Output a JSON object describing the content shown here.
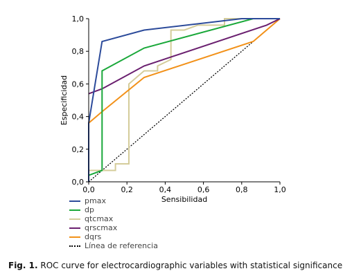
{
  "chart_data": {
    "type": "line",
    "title": "",
    "xlabel": "Sensibilidad",
    "ylabel": "Especificidad",
    "xlim": [
      0,
      1
    ],
    "ylim": [
      0,
      1
    ],
    "x_ticks": [
      "0,0",
      "0,2",
      "0,4",
      "0,6",
      "0,8",
      "1,0"
    ],
    "y_ticks": [
      "0,0",
      "0,2",
      "0,4",
      "0,6",
      "0,8",
      "1,0"
    ],
    "grid": false,
    "legend_position": "bottom-left",
    "series": [
      {
        "name": "pmax",
        "color": "#2b4a9a",
        "points": [
          [
            0,
            0
          ],
          [
            0,
            0.36
          ],
          [
            0.07,
            0.86
          ],
          [
            0.29,
            0.93
          ],
          [
            0.8,
            1
          ],
          [
            1,
            1
          ]
        ]
      },
      {
        "name": "dp",
        "color": "#1aa83a",
        "points": [
          [
            0,
            0.03
          ],
          [
            0,
            0.04
          ],
          [
            0.07,
            0.07
          ],
          [
            0.07,
            0.68
          ],
          [
            0.29,
            0.82
          ],
          [
            0.86,
            1
          ],
          [
            1,
            1
          ]
        ]
      },
      {
        "name": "qtcmax",
        "color": "#d4cc9a",
        "points": [
          [
            0,
            0
          ],
          [
            0,
            0.07
          ],
          [
            0.14,
            0.07
          ],
          [
            0.14,
            0.11
          ],
          [
            0.21,
            0.11
          ],
          [
            0.21,
            0.6
          ],
          [
            0.29,
            0.68
          ],
          [
            0.36,
            0.68
          ],
          [
            0.36,
            0.71
          ],
          [
            0.43,
            0.75
          ],
          [
            0.43,
            0.93
          ],
          [
            0.5,
            0.93
          ],
          [
            0.57,
            0.96
          ],
          [
            0.71,
            0.96
          ],
          [
            0.71,
            1
          ],
          [
            1,
            1
          ]
        ]
      },
      {
        "name": "qrscmax",
        "color": "#6a1f6f",
        "points": [
          [
            0,
            0.54
          ],
          [
            0.07,
            0.57
          ],
          [
            0.29,
            0.71
          ],
          [
            0.93,
            0.96
          ],
          [
            1,
            1
          ]
        ]
      },
      {
        "name": "dqrs",
        "color": "#f29119",
        "points": [
          [
            0,
            0
          ],
          [
            0,
            0.36
          ],
          [
            0.07,
            0.43
          ],
          [
            0.29,
            0.64
          ],
          [
            0.86,
            0.86
          ],
          [
            1,
            1
          ]
        ]
      },
      {
        "name": "Línea de referencia",
        "color": "#000000",
        "dashed": true,
        "points": [
          [
            0,
            0
          ],
          [
            1,
            1
          ]
        ]
      }
    ]
  },
  "caption": {
    "label": "Fig. 1.",
    "text": " ROC curve for electrocardiographic variables with statistical significance."
  }
}
